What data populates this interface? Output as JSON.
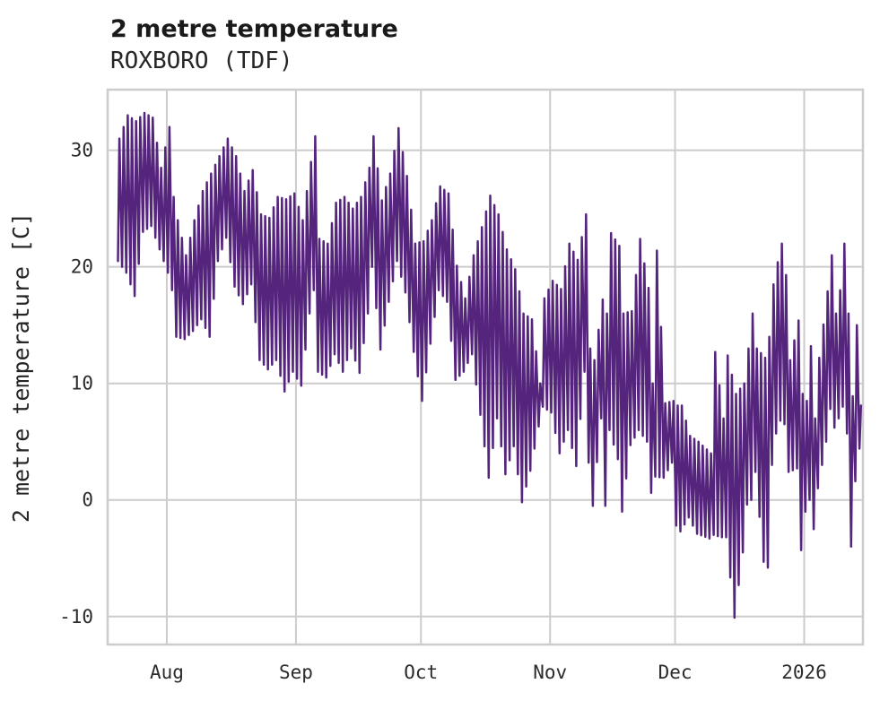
{
  "chart": {
    "background_color": "#ffffff",
    "grid_color": "#cccccc",
    "text_color": "#2b2b2b"
  },
  "chart_data": {
    "type": "line",
    "title": "2 metre temperature",
    "subtitle": "ROXBORO (TDF)",
    "ylabel": "2 metre temperature [C]",
    "xlabel": "",
    "legend": "none",
    "grid": true,
    "line_color": "#55247d",
    "x_tick_labels": [
      "Aug",
      "Sep",
      "Oct",
      "Nov",
      "Dec",
      "2026"
    ],
    "x_tick_day_offsets": [
      12,
      43,
      73,
      104,
      134,
      165
    ],
    "y_tick_labels": [
      "30",
      "20",
      "10",
      "0",
      "-10"
    ],
    "y_tick_values": [
      30,
      20,
      10,
      0,
      -10
    ],
    "xlim_day_offsets": [
      -2.2,
      179.1
    ],
    "ylim": [
      -12.4,
      35.2
    ],
    "series_description": "Hourly-resolution 2 metre temperature in Celsius; day offset 0 is the first plotted day (mid-July). Each entry is [day_offset, daily_max_C, daily_min_C].",
    "daily_envelope_day_max_min": [
      [
        0,
        31,
        20.5
      ],
      [
        2,
        33,
        19.5
      ],
      [
        4,
        32.5,
        17.5
      ],
      [
        6,
        33.2,
        23
      ],
      [
        8,
        32.8,
        23.5
      ],
      [
        10,
        28.5,
        21.5
      ],
      [
        12,
        32,
        19.5
      ],
      [
        13,
        26,
        18
      ],
      [
        14,
        24,
        14
      ],
      [
        16,
        21,
        13.8
      ],
      [
        18,
        24,
        14.5
      ],
      [
        20,
        26.5,
        15.5
      ],
      [
        22,
        28,
        14
      ],
      [
        24,
        29.5,
        20.5
      ],
      [
        26,
        31,
        22.5
      ],
      [
        28,
        29.5,
        18.3
      ],
      [
        30,
        26.5,
        16.8
      ],
      [
        32,
        28.3,
        18.5
      ],
      [
        34,
        24.5,
        12
      ],
      [
        36,
        24.2,
        11.2
      ],
      [
        38,
        26,
        12
      ],
      [
        40,
        25.8,
        9.3
      ],
      [
        42,
        26.3,
        11
      ],
      [
        44,
        24,
        9.8
      ],
      [
        46,
        29,
        16
      ],
      [
        47,
        31.2,
        18
      ],
      [
        48,
        22.4,
        11
      ],
      [
        50,
        22,
        10.5
      ],
      [
        52,
        25.5,
        12.5
      ],
      [
        54,
        26,
        11
      ],
      [
        56,
        25,
        13
      ],
      [
        58,
        26,
        10.9
      ],
      [
        60,
        28.5,
        16
      ],
      [
        61,
        31.2,
        20
      ],
      [
        63,
        25.7,
        12.9
      ],
      [
        65,
        28,
        17
      ],
      [
        67,
        31.9,
        20.5
      ],
      [
        69,
        27.8,
        17.8
      ],
      [
        71,
        22,
        12.7
      ],
      [
        73,
        22.2,
        8.5
      ],
      [
        75,
        24,
        13.4
      ],
      [
        77,
        26.9,
        18
      ],
      [
        79,
        26.3,
        17
      ],
      [
        81,
        20.1,
        10.3
      ],
      [
        83,
        17.3,
        11
      ],
      [
        85,
        21,
        12.5
      ],
      [
        87,
        23.4,
        7.3
      ],
      [
        89,
        26.1,
        1.9
      ],
      [
        91,
        24.5,
        7
      ],
      [
        93,
        21.5,
        2.2
      ],
      [
        95,
        19.8,
        4.6
      ],
      [
        97,
        16,
        -0.2
      ],
      [
        99,
        15.5,
        2.5
      ],
      [
        101,
        10,
        6.3
      ],
      [
        102,
        17.3,
        8
      ],
      [
        104,
        18.8,
        7.5
      ],
      [
        106,
        18.1,
        4
      ],
      [
        108,
        22,
        6
      ],
      [
        110,
        20.6,
        2.9
      ],
      [
        112,
        24.5,
        11
      ],
      [
        113,
        13,
        3.2
      ],
      [
        114,
        12,
        -0.5
      ],
      [
        116,
        17.2,
        7
      ],
      [
        117,
        16,
        -0.5
      ],
      [
        118,
        22.9,
        6
      ],
      [
        120,
        21.8,
        3.5
      ],
      [
        121,
        16,
        -1
      ],
      [
        123,
        16.2,
        4.7
      ],
      [
        125,
        22.4,
        6
      ],
      [
        127,
        18.2,
        5
      ],
      [
        128,
        10,
        0.6
      ],
      [
        129,
        21.4,
        2
      ],
      [
        131,
        8.3,
        1.9
      ],
      [
        133,
        8.5,
        3.2
      ],
      [
        134,
        8.1,
        -2.2
      ],
      [
        135,
        8.1,
        -2.7
      ],
      [
        137,
        5.5,
        -1.5
      ],
      [
        139,
        5,
        -2.9
      ],
      [
        142,
        4,
        -3.3
      ],
      [
        143,
        12.7,
        -3
      ],
      [
        145,
        7,
        -3.2
      ],
      [
        146,
        12.4,
        -3.2
      ],
      [
        148,
        9.1,
        -10.1
      ],
      [
        150,
        10,
        -4.5
      ],
      [
        151,
        13,
        -0.4
      ],
      [
        152,
        16,
        0
      ],
      [
        153,
        13,
        2.4
      ],
      [
        155,
        12.2,
        -5.3
      ],
      [
        156,
        14,
        -5.8
      ],
      [
        157,
        18.5,
        3
      ],
      [
        158,
        20.4,
        5.7
      ],
      [
        159,
        22,
        6.8
      ],
      [
        160,
        19.3,
        6.5
      ],
      [
        161,
        12,
        2.4
      ],
      [
        163,
        15.4,
        2.7
      ],
      [
        164,
        9.1,
        -4.3
      ],
      [
        165,
        8.5,
        -1
      ],
      [
        166,
        13.2,
        0
      ],
      [
        167,
        7,
        -2.5
      ],
      [
        168,
        12.2,
        1
      ],
      [
        170,
        17.9,
        5
      ],
      [
        171,
        21,
        7.8
      ],
      [
        172,
        16,
        6.2
      ],
      [
        173,
        18,
        7
      ],
      [
        174,
        22,
        8
      ],
      [
        175,
        16,
        5.7
      ],
      [
        176,
        8.9,
        -4
      ],
      [
        177,
        15,
        1.6
      ],
      [
        178,
        8.1,
        4.4
      ]
    ]
  }
}
